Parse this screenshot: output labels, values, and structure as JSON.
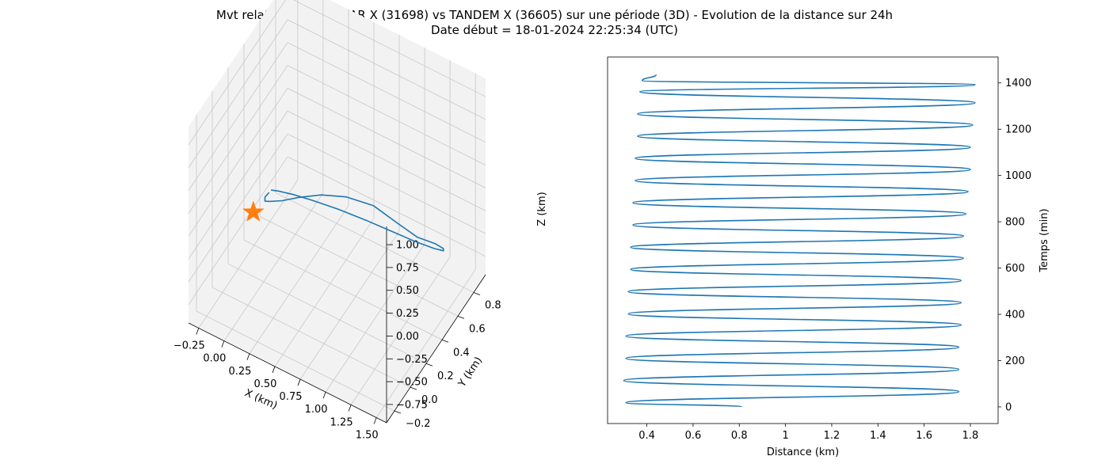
{
  "figure": {
    "title_line1": "Mvt relatif de TERRA SAR X (31698) vs TANDEM X (36605) sur une période (3D) - Evolution de la distance sur 24h",
    "title_line2": "Date début = 18-01-2024 22:25:34 (UTC)"
  },
  "colors": {
    "series": "#1f77b4",
    "marker": "#ff7f0e",
    "pane": "#f2f2f2",
    "grid": "#c8c8c8"
  },
  "chart_data": [
    {
      "type": "line3d",
      "xlabel": "X (km)",
      "ylabel": "Y (km)",
      "zlabel": "Z (km)",
      "xlim": [
        -0.35,
        1.6
      ],
      "ylim": [
        -0.3,
        0.95
      ],
      "zlim": [
        -0.95,
        1.2
      ],
      "xticks": [
        "−0.25",
        "0.00",
        "0.25",
        "0.50",
        "0.75",
        "1.00",
        "1.25",
        "1.50"
      ],
      "yticks": [
        "−0.2",
        "0.0",
        "0.2",
        "0.4",
        "0.6",
        "0.8"
      ],
      "zticks": [
        "−0.75",
        "−0.50",
        "−0.25",
        "0.00",
        "0.25",
        "0.50",
        "0.75",
        "1.00"
      ],
      "grid": true,
      "series": [
        {
          "points": [
            [
              -0.22,
              0.55,
              -0.55
            ],
            [
              -0.16,
              0.42,
              -0.4
            ],
            [
              -0.05,
              0.28,
              -0.2
            ],
            [
              0.1,
              0.15,
              0.05
            ],
            [
              0.3,
              0.05,
              0.3
            ],
            [
              0.52,
              -0.02,
              0.55
            ],
            [
              0.76,
              -0.05,
              0.75
            ],
            [
              1.0,
              -0.04,
              0.85
            ],
            [
              1.22,
              0.02,
              0.8
            ],
            [
              1.4,
              0.1,
              0.6
            ],
            [
              1.5,
              0.22,
              0.35
            ],
            [
              1.55,
              0.38,
              0.1
            ],
            [
              1.52,
              0.52,
              -0.15
            ],
            [
              1.42,
              0.65,
              -0.4
            ],
            [
              1.25,
              0.75,
              -0.6
            ],
            [
              1.0,
              0.82,
              -0.75
            ],
            [
              0.75,
              0.85,
              -0.82
            ],
            [
              0.5,
              0.85,
              -0.84
            ],
            [
              0.25,
              0.82,
              -0.82
            ],
            [
              0.05,
              0.76,
              -0.76
            ],
            [
              -0.1,
              0.7,
              -0.7
            ],
            [
              -0.2,
              0.64,
              -0.64
            ],
            [
              -0.24,
              0.6,
              -0.6
            ]
          ]
        }
      ],
      "marker": {
        "symbol": "star",
        "point": [
          -0.18,
          0.3,
          -0.42
        ]
      }
    },
    {
      "type": "line",
      "xlabel": "Distance (km)",
      "ylabel": "Temps (min)",
      "xlim": [
        0.23,
        1.92
      ],
      "ylim": [
        -72,
        1512
      ],
      "xticks": [
        0.4,
        0.6,
        0.8,
        1.0,
        1.2,
        1.4,
        1.6,
        1.8
      ],
      "yticks": [
        0,
        200,
        400,
        600,
        800,
        1000,
        1200,
        1400
      ],
      "y_axis_side": "right",
      "grid": false,
      "series": [
        {
          "x": [
            0.81,
            0.31,
            1.75,
            0.3,
            1.75,
            0.31,
            1.75,
            0.31,
            1.76,
            0.32,
            1.76,
            0.32,
            1.76,
            0.33,
            1.77,
            0.33,
            1.77,
            0.34,
            1.78,
            0.34,
            1.79,
            0.35,
            1.8,
            0.35,
            1.8,
            0.36,
            1.81,
            0.36,
            1.82,
            0.37,
            1.82,
            0.38,
            0.44
          ],
          "y": [
            0,
            18,
            66,
            114,
            162,
            210,
            258,
            306,
            354,
            402,
            450,
            498,
            546,
            594,
            642,
            690,
            738,
            786,
            834,
            882,
            930,
            978,
            1026,
            1074,
            1122,
            1170,
            1218,
            1266,
            1314,
            1362,
            1392,
            1410,
            1436
          ]
        }
      ]
    }
  ]
}
